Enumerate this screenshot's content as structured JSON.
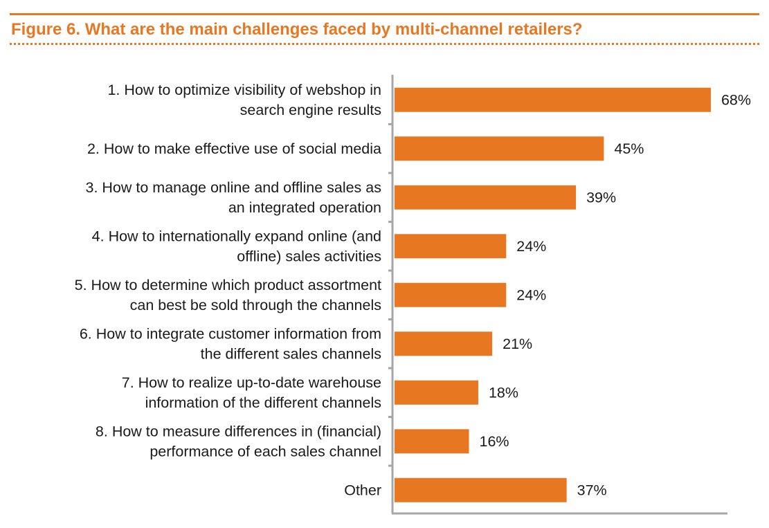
{
  "figure": {
    "title": "Figure 6. What are the main challenges faced by multi-channel retailers?"
  },
  "colors": {
    "accent": "#e87722",
    "bar": "#e87722",
    "axis": "#a6a6a6",
    "text": "#1a1a1a"
  },
  "chart_data": {
    "type": "bar",
    "orientation": "horizontal",
    "categories": [
      [
        "1. How to optimize visibility of webshop in",
        "search engine results"
      ],
      [
        "2. How to make effective use of social media"
      ],
      [
        "3. How to manage online and offline sales as",
        "an integrated operation"
      ],
      [
        "4. How to internationally expand online (and",
        "offline) sales activities"
      ],
      [
        "5. How to determine which product assortment",
        "can best be sold through the channels"
      ],
      [
        "6. How to integrate customer information from",
        "the different sales channels"
      ],
      [
        "7. How to realize up-to-date warehouse",
        "information of the different channels"
      ],
      [
        "8. How to measure differences in (financial)",
        "performance of each sales channel"
      ],
      [
        "Other"
      ]
    ],
    "values": [
      68,
      45,
      39,
      24,
      24,
      21,
      18,
      16,
      37
    ],
    "value_labels": [
      "68%",
      "45%",
      "39%",
      "24%",
      "24%",
      "21%",
      "18%",
      "16%",
      "37%"
    ],
    "unit": "%",
    "xlim": [
      0,
      73
    ],
    "grid": false,
    "legend": "none"
  }
}
